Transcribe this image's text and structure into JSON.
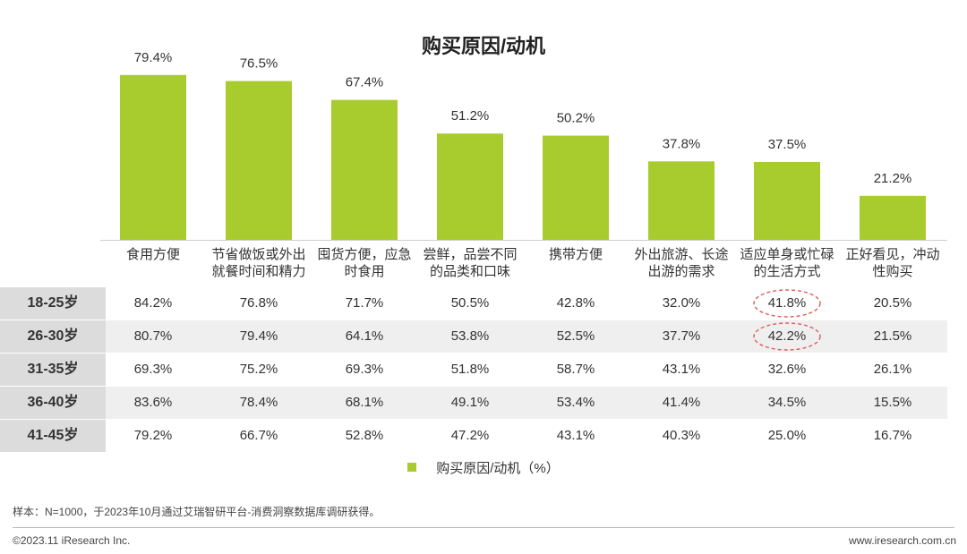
{
  "chart_data": {
    "type": "bar",
    "title": "购买原因/动机",
    "categories": [
      "食用方便",
      "节省做饭或外出就餐时间和精力",
      "囤货方便，应急时食用",
      "尝鲜，品尝不同的品类和口味",
      "携带方便",
      "外出旅游、长途出游的需求",
      "适应单身或忙碌的生活方式",
      "正好看见，冲动性购买"
    ],
    "category_lines": [
      [
        "食用方便"
      ],
      [
        "节省做饭或外出",
        "就餐时间和精力"
      ],
      [
        "囤货方便，应急",
        "时食用"
      ],
      [
        "尝鲜，品尝不同",
        "的品类和口味"
      ],
      [
        "携带方便"
      ],
      [
        "外出旅游、长途",
        "出游的需求"
      ],
      [
        "适应单身或忙碌",
        "的生活方式"
      ],
      [
        "正好看见，冲动",
        "性购买"
      ]
    ],
    "series": [
      {
        "name": "购买原因/动机（%）",
        "values": [
          79.4,
          76.5,
          67.4,
          51.2,
          50.2,
          37.8,
          37.5,
          21.2
        ]
      }
    ],
    "value_labels": [
      "79.4%",
      "76.5%",
      "67.4%",
      "51.2%",
      "50.2%",
      "37.8%",
      "37.5%",
      "21.2%"
    ],
    "ylim": [
      0,
      100
    ],
    "bar_color": "#a8cc2d",
    "legend": "bottom",
    "table": {
      "rows": [
        {
          "label": "18-25岁",
          "values": [
            "84.2%",
            "76.8%",
            "71.7%",
            "50.5%",
            "42.8%",
            "32.0%",
            "41.8%",
            "20.5%"
          ]
        },
        {
          "label": "26-30岁",
          "values": [
            "80.7%",
            "79.4%",
            "64.1%",
            "53.8%",
            "52.5%",
            "37.7%",
            "42.2%",
            "21.5%"
          ]
        },
        {
          "label": "31-35岁",
          "values": [
            "69.3%",
            "75.2%",
            "69.3%",
            "51.8%",
            "58.7%",
            "43.1%",
            "32.6%",
            "26.1%"
          ]
        },
        {
          "label": "36-40岁",
          "values": [
            "83.6%",
            "78.4%",
            "68.1%",
            "49.1%",
            "53.4%",
            "41.4%",
            "34.5%",
            "15.5%"
          ]
        },
        {
          "label": "41-45岁",
          "values": [
            "79.2%",
            "66.7%",
            "52.8%",
            "47.2%",
            "43.1%",
            "40.3%",
            "25.0%",
            "16.7%"
          ]
        }
      ],
      "highlight_cells": [
        [
          0,
          6
        ],
        [
          1,
          6
        ]
      ],
      "highlight_color": "#e05a5a"
    }
  },
  "legend_label": "购买原因/动机（%）",
  "note": "样本：N=1000，于2023年10月通过艾瑞智研平台-消费洞察数据库调研获得。",
  "copyright": "©2023.11 iResearch Inc.",
  "website": "www.iresearch.com.cn"
}
